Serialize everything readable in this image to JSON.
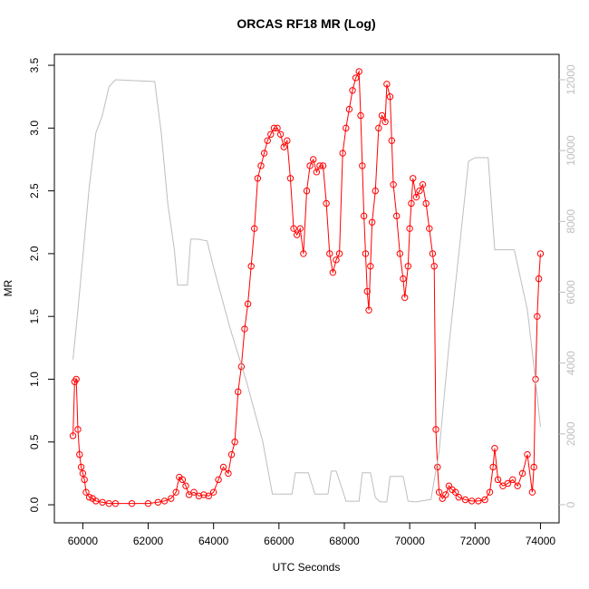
{
  "chart_data": {
    "type": "line",
    "title": "ORCAS RF18 MR (Log)",
    "x_label": "UTC Seconds",
    "y_label": "MR",
    "xlim": [
      59130,
      74570
    ],
    "ylim": [
      -0.144,
      3.587
    ],
    "y2lim": [
      -512,
      12716
    ],
    "xticks": [
      60000,
      62000,
      64000,
      66000,
      68000,
      70000,
      72000,
      74000
    ],
    "yticks": [
      {
        "value": 0,
        "label": "0.0"
      },
      0.5,
      {
        "value": 1,
        "label": "1.0"
      },
      1.5,
      {
        "value": 2,
        "label": "2.0"
      },
      2.5,
      {
        "value": 3,
        "label": "3.0"
      },
      3.5
    ],
    "y2ticks": [
      0,
      2000,
      4000,
      6000,
      8000,
      10000,
      12000
    ],
    "series": [
      {
        "color": "#ff0000",
        "markers": true,
        "x": [
          59700,
          59750,
          59800,
          59850,
          59900,
          59950,
          60000,
          60050,
          60100,
          60200,
          60300,
          60400,
          60600,
          60800,
          61000,
          61500,
          62000,
          62300,
          62500,
          62700,
          62850,
          62950,
          63050,
          63150,
          63250,
          63400,
          63550,
          63700,
          63850,
          64000,
          64150,
          64300,
          64450,
          64550,
          64650,
          64750,
          64850,
          64950,
          65050,
          65150,
          65250,
          65350,
          65450,
          65550,
          65650,
          65750,
          65850,
          65950,
          66050,
          66150,
          66250,
          66350,
          66450,
          66550,
          66650,
          66750,
          66850,
          66950,
          67050,
          67150,
          67250,
          67350,
          67450,
          67550,
          67650,
          67750,
          67850,
          67950,
          68050,
          68150,
          68250,
          68350,
          68450,
          68500,
          68550,
          68600,
          68650,
          68700,
          68750,
          68800,
          68850,
          68950,
          69050,
          69150,
          69250,
          69300,
          69400,
          69450,
          69500,
          69600,
          69700,
          69800,
          69850,
          69950,
          70000,
          70050,
          70100,
          70200,
          70300,
          70400,
          70500,
          70600,
          70700,
          70750,
          70800,
          70850,
          70900,
          71000,
          71100,
          71200,
          71300,
          71400,
          71500,
          71700,
          71900,
          72100,
          72300,
          72450,
          72550,
          72600,
          72700,
          72850,
          73000,
          73150,
          73300,
          73450,
          73600,
          73750,
          73800,
          73850,
          73900,
          73950,
          74000
        ],
        "values": [
          0.55,
          0.98,
          1.0,
          0.6,
          0.4,
          0.3,
          0.25,
          0.2,
          0.1,
          0.06,
          0.05,
          0.03,
          0.02,
          0.01,
          0.01,
          0.01,
          0.01,
          0.02,
          0.03,
          0.05,
          0.1,
          0.22,
          0.2,
          0.15,
          0.08,
          0.1,
          0.07,
          0.08,
          0.07,
          0.1,
          0.2,
          0.3,
          0.25,
          0.4,
          0.5,
          0.9,
          1.1,
          1.4,
          1.6,
          1.9,
          2.2,
          2.6,
          2.7,
          2.8,
          2.9,
          2.95,
          3.0,
          3.0,
          2.95,
          2.85,
          2.9,
          2.6,
          2.2,
          2.15,
          2.2,
          2.0,
          2.5,
          2.7,
          2.75,
          2.65,
          2.7,
          2.7,
          2.4,
          2.0,
          1.85,
          1.95,
          2.0,
          2.8,
          3.0,
          3.15,
          3.3,
          3.4,
          3.45,
          3.1,
          2.7,
          2.3,
          2.0,
          1.7,
          1.55,
          1.9,
          2.25,
          2.5,
          3.0,
          3.1,
          3.05,
          3.35,
          3.25,
          2.9,
          2.55,
          2.3,
          2.0,
          1.8,
          1.65,
          1.9,
          2.2,
          2.4,
          2.6,
          2.45,
          2.5,
          2.55,
          2.4,
          2.2,
          2.0,
          1.9,
          0.6,
          0.3,
          0.1,
          0.05,
          0.08,
          0.15,
          0.12,
          0.1,
          0.06,
          0.04,
          0.03,
          0.03,
          0.04,
          0.1,
          0.3,
          0.45,
          0.2,
          0.15,
          0.17,
          0.2,
          0.15,
          0.25,
          0.4,
          0.1,
          0.3,
          1.0,
          1.5,
          1.8,
          2.0
        ]
      },
      {
        "color": "#bebebe",
        "axis": "y2",
        "markers": false,
        "x": [
          59700,
          59850,
          60000,
          60200,
          60400,
          60600,
          60800,
          61000,
          62200,
          62400,
          62600,
          62800,
          62900,
          63200,
          63300,
          63500,
          63800,
          64000,
          64500,
          65000,
          65500,
          65800,
          66400,
          66500,
          66900,
          67100,
          67500,
          67600,
          67750,
          67950,
          68050,
          68450,
          68550,
          68800,
          68950,
          69100,
          69300,
          69400,
          69800,
          69950,
          70200,
          70650,
          70900,
          71200,
          71550,
          71800,
          72000,
          72400,
          72600,
          73200,
          73600,
          73850,
          74000
        ],
        "values": [
          4100,
          5500,
          7000,
          9000,
          10500,
          11000,
          11800,
          12000,
          11950,
          10500,
          8500,
          7200,
          6200,
          6200,
          7500,
          7500,
          7450,
          6700,
          5000,
          3500,
          1800,
          300,
          300,
          900,
          900,
          300,
          300,
          950,
          950,
          400,
          100,
          100,
          900,
          900,
          200,
          80,
          80,
          800,
          800,
          100,
          80,
          150,
          1500,
          4500,
          7500,
          9700,
          9800,
          9800,
          7200,
          7200,
          5500,
          3500,
          2200
        ]
      }
    ]
  }
}
